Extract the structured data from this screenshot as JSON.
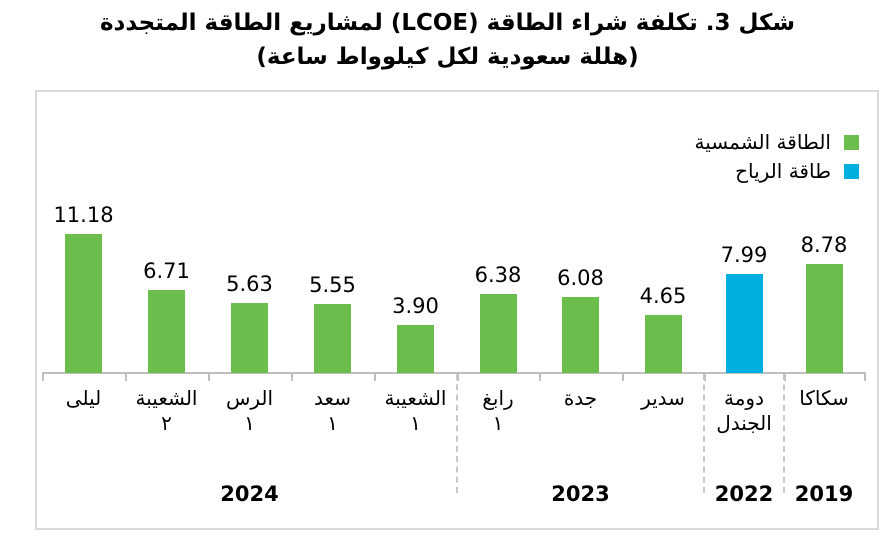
{
  "chart_data": {
    "type": "bar",
    "title": "شكل 3. تكلفة شراء الطاقة (LCOE) لمشاريع الطاقة المتجددة",
    "subtitle": "(هللة سعودية لكل كيلوواط ساعة)",
    "ylabel": "هللة سعودية لكل كيلوواط ساعة",
    "xlabel": "",
    "ylim": [
      0,
      12
    ],
    "grid": false,
    "legend_position": "top-right-inside",
    "value_labels": true,
    "series_legend": [
      {
        "name": "الطاقة الشمسية",
        "key": "solar",
        "color": "#6CBE4C"
      },
      {
        "name": "طاقة الرياح",
        "key": "wind",
        "color": "#00AEDF"
      }
    ],
    "bars": [
      {
        "label": "ليلى",
        "label_lines": [
          "ليلى"
        ],
        "value": 11.18,
        "value_text": "11.18",
        "series": "solar",
        "year": "2024"
      },
      {
        "label": "الشعيبة ٢",
        "label_lines": [
          "الشعيبة",
          "٢"
        ],
        "value": 6.71,
        "value_text": "6.71",
        "series": "solar",
        "year": "2024"
      },
      {
        "label": "الرس ١",
        "label_lines": [
          "الرس",
          "١"
        ],
        "value": 5.63,
        "value_text": "5.63",
        "series": "solar",
        "year": "2024"
      },
      {
        "label": "سعد ١",
        "label_lines": [
          "سعد",
          "١"
        ],
        "value": 5.55,
        "value_text": "5.55",
        "series": "solar",
        "year": "2024"
      },
      {
        "label": "الشعيبة ١",
        "label_lines": [
          "الشعيبة",
          "١"
        ],
        "value": 3.9,
        "value_text": "3.90",
        "series": "solar",
        "year": "2024"
      },
      {
        "label": "رابغ ١",
        "label_lines": [
          "رابغ",
          "١"
        ],
        "value": 6.38,
        "value_text": "6.38",
        "series": "solar",
        "year": "2023"
      },
      {
        "label": "جدة",
        "label_lines": [
          "جدة"
        ],
        "value": 6.08,
        "value_text": "6.08",
        "series": "solar",
        "year": "2023"
      },
      {
        "label": "سدير",
        "label_lines": [
          "سدير"
        ],
        "value": 4.65,
        "value_text": "4.65",
        "series": "solar",
        "year": "2023"
      },
      {
        "label": "دومة الجندل",
        "label_lines": [
          "دومة",
          "الجندل"
        ],
        "value": 7.99,
        "value_text": "7.99",
        "series": "wind",
        "year": "2022"
      },
      {
        "label": "سكاكا",
        "label_lines": [
          "سكاكا"
        ],
        "value": 8.78,
        "value_text": "8.78",
        "series": "solar",
        "year": "2019"
      }
    ],
    "year_groups": [
      {
        "label": "2024",
        "start": 0,
        "count": 5
      },
      {
        "label": "2023",
        "start": 5,
        "count": 3
      },
      {
        "label": "2022",
        "start": 8,
        "count": 1
      },
      {
        "label": "2019",
        "start": 9,
        "count": 1
      }
    ]
  },
  "colors": {
    "solar": "#6CBE4C",
    "wind": "#00AEDF",
    "axis": "#BFBFBF",
    "separator": "#C8C8C8",
    "frame_border": "#D9D9D9",
    "text": "#000000"
  }
}
